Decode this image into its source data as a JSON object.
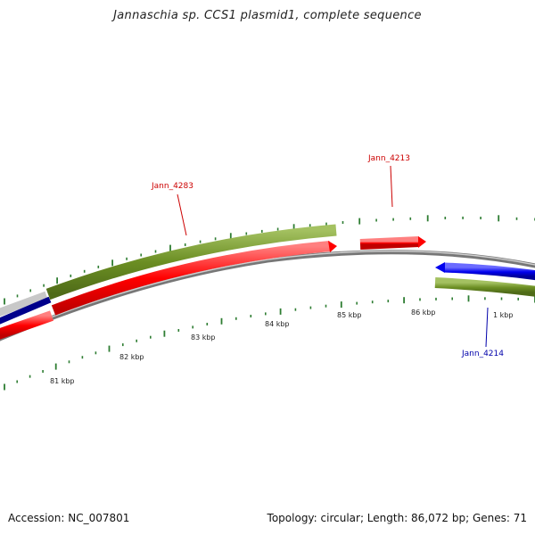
{
  "title": "Jannaschia sp. CCS1 plasmid1, complete sequence",
  "footer": {
    "accession": "Accession: NC_007801",
    "summary": "Topology: circular; Length: 86,072 bp; Genes: 71"
  },
  "scale_labels": [
    "81 kbp",
    "82 kbp",
    "83 kbp",
    "84 kbp",
    "85 kbp",
    "86 kbp",
    "1 kbp"
  ],
  "gene_labels": [
    {
      "text": "Jann_4283",
      "color": "#cc0000"
    },
    {
      "text": "Jann_4213",
      "color": "#cc0000"
    },
    {
      "text": "Jann_4214",
      "color": "#0000aa"
    }
  ],
  "colors": {
    "forward_gene": "#ff0000",
    "reverse_gene": "#0000ee",
    "cds_band": "#6b8e23",
    "backbone": "#888888",
    "ticks": "#2e7d32"
  }
}
